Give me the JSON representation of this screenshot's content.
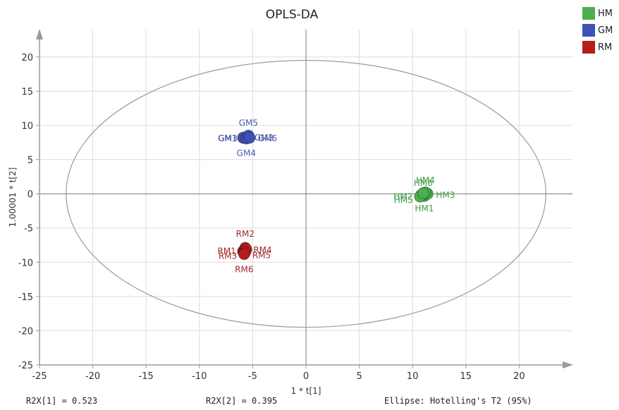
{
  "chart_data": {
    "type": "scatter",
    "title": "OPLS-DA",
    "xlabel": "1 * t[1]",
    "ylabel": "1.00001 * t[2]",
    "xlim": [
      -25,
      25
    ],
    "ylim": [
      -25,
      24
    ],
    "x_ticks": [
      -25,
      -20,
      -15,
      -10,
      -5,
      0,
      5,
      10,
      15,
      20
    ],
    "y_ticks": [
      -25,
      -20,
      -15,
      -10,
      -5,
      0,
      5,
      10,
      15,
      20
    ],
    "grid": true,
    "ellipse": {
      "cx": 0,
      "cy": 0,
      "rx": 22.5,
      "ry": 19.5
    },
    "series": [
      {
        "name": "HM",
        "color": "#4caf50",
        "label_color": "#3e9b45",
        "points": [
          {
            "label": "HM1",
            "x": 11.1,
            "y": -0.3
          },
          {
            "label": "HM2",
            "x": 10.8,
            "y": -0.2
          },
          {
            "label": "HM3",
            "x": 11.4,
            "y": 0.0
          },
          {
            "label": "HM4",
            "x": 11.2,
            "y": 0.2
          },
          {
            "label": "HM5",
            "x": 10.7,
            "y": -0.4
          },
          {
            "label": "HM6",
            "x": 11.0,
            "y": 0.1
          }
        ]
      },
      {
        "name": "GM",
        "color": "#3f51b5",
        "label_color": "#4a5aa8",
        "points": [
          {
            "label": "GM1",
            "x": -5.8,
            "y": 8.2
          },
          {
            "label": "GM2",
            "x": -5.5,
            "y": 8.3
          },
          {
            "label": "GM3",
            "x": -5.9,
            "y": 8.2
          },
          {
            "label": "GM4",
            "x": -5.6,
            "y": 8.1
          },
          {
            "label": "GM5",
            "x": -5.4,
            "y": 8.5
          },
          {
            "label": "GM6",
            "x": -5.3,
            "y": 8.2
          }
        ]
      },
      {
        "name": "RM",
        "color": "#b71c1c",
        "label_color": "#9e2a2a",
        "points": [
          {
            "label": "RM1",
            "x": -5.9,
            "y": -8.4
          },
          {
            "label": "RM2",
            "x": -5.7,
            "y": -7.9
          },
          {
            "label": "RM3",
            "x": -5.8,
            "y": -8.6
          },
          {
            "label": "RM4",
            "x": -5.6,
            "y": -8.1
          },
          {
            "label": "RM5",
            "x": -5.7,
            "y": -8.5
          },
          {
            "label": "RM6",
            "x": -5.8,
            "y": -8.8
          }
        ]
      }
    ]
  },
  "legend": {
    "items": [
      {
        "name": "HM",
        "color": "#4caf50"
      },
      {
        "name": "GM",
        "color": "#3f51b5"
      },
      {
        "name": "RM",
        "color": "#b71c1c"
      }
    ]
  },
  "footer": {
    "r2x1": "R2X[1] = 0.523",
    "r2x2": "R2X[2] = 0.395",
    "ellipse": "Ellipse: Hotelling's T2 (95%)"
  }
}
